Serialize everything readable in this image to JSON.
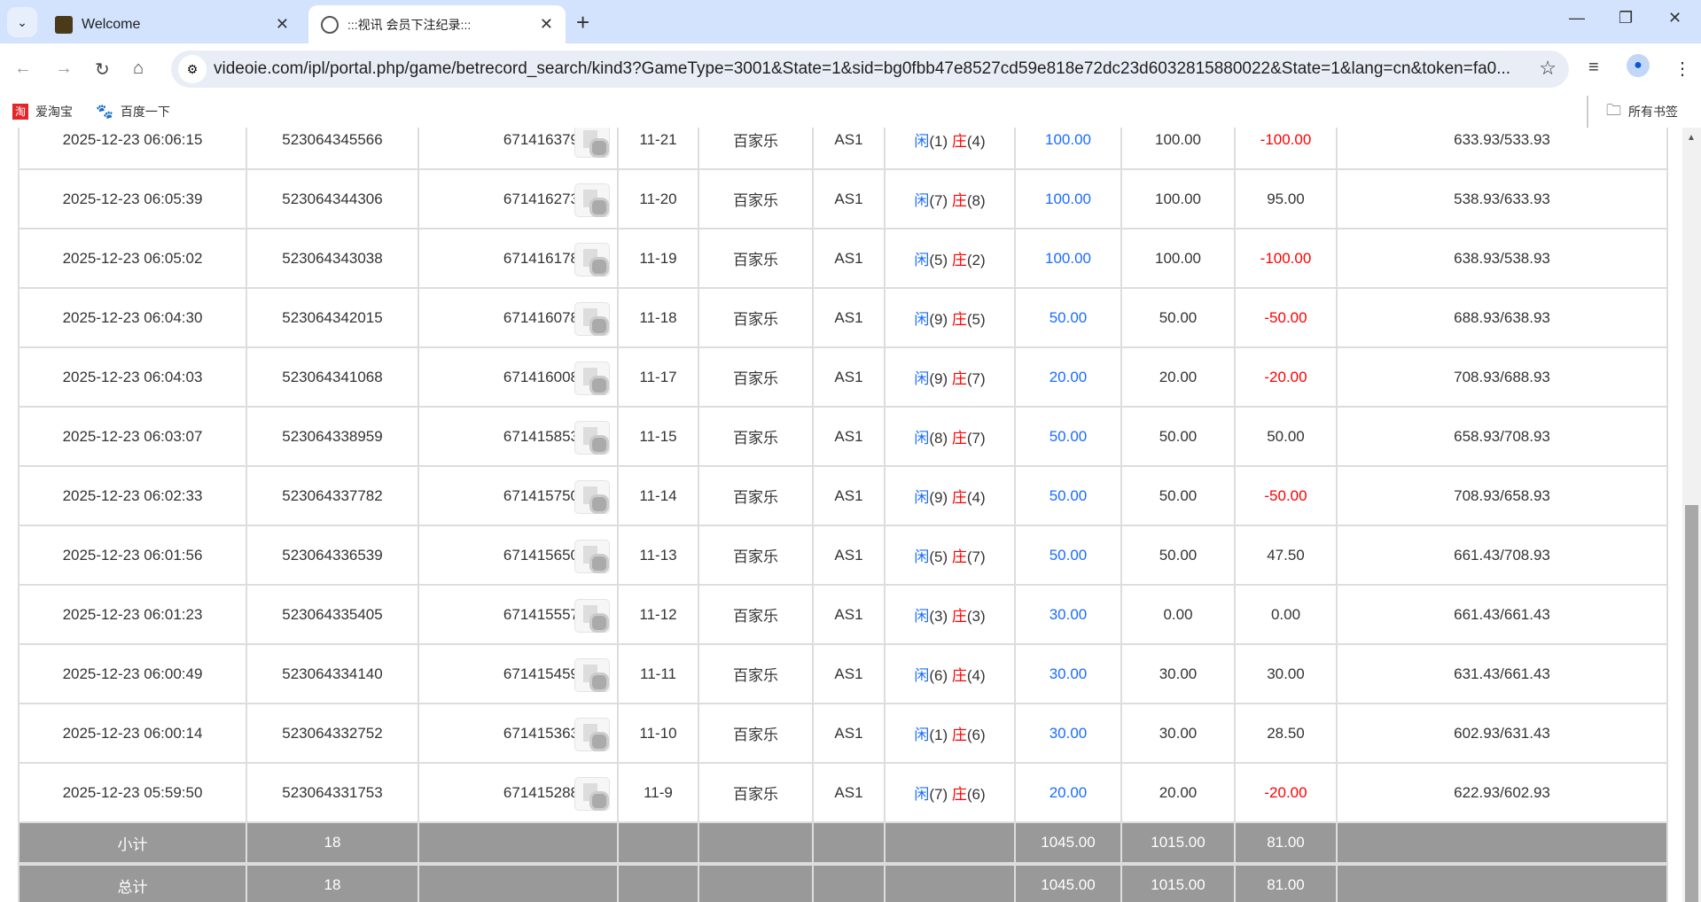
{
  "browser": {
    "tabs": [
      {
        "title": "Welcome",
        "active": false
      },
      {
        "title": ":::视讯 会员下注纪录:::",
        "active": true
      }
    ],
    "url": "videoie.com/ipl/portal.php/game/betrecord_search/kind3?GameType=3001&State=1&sid=bg0fbb47e8527cd59e818e72dc23d6032815880022&State=1&lang=cn&token=fa0...",
    "bookmarks": [
      {
        "label": "爱淘宝"
      },
      {
        "label": "百度一下"
      }
    ],
    "all_bookmarks": "所有书签"
  },
  "colors": {
    "player": "#1a6cff",
    "banker": "#ff0000",
    "loss": "#ff0000",
    "footer_bg": "#999999"
  },
  "rows": [
    {
      "time": "2025-12-23 06:06:15",
      "bet_id": "523064345566",
      "round": "671416379",
      "table_no": "11-21",
      "game": "百家乐",
      "table": "AS1",
      "p": "闲",
      "pv": "(1)",
      "b": "庄",
      "bv": "(4)",
      "bet": "100.00",
      "valid": "100.00",
      "win": "-100.00",
      "loss": true,
      "balance": "633.93/533.93"
    },
    {
      "time": "2025-12-23 06:05:39",
      "bet_id": "523064344306",
      "round": "671416273",
      "table_no": "11-20",
      "game": "百家乐",
      "table": "AS1",
      "p": "闲",
      "pv": "(7)",
      "b": "庄",
      "bv": "(8)",
      "bet": "100.00",
      "valid": "100.00",
      "win": "95.00",
      "loss": false,
      "balance": "538.93/633.93"
    },
    {
      "time": "2025-12-23 06:05:02",
      "bet_id": "523064343038",
      "round": "671416178",
      "table_no": "11-19",
      "game": "百家乐",
      "table": "AS1",
      "p": "闲",
      "pv": "(5)",
      "b": "庄",
      "bv": "(2)",
      "bet": "100.00",
      "valid": "100.00",
      "win": "-100.00",
      "loss": true,
      "balance": "638.93/538.93"
    },
    {
      "time": "2025-12-23 06:04:30",
      "bet_id": "523064342015",
      "round": "671416078",
      "table_no": "11-18",
      "game": "百家乐",
      "table": "AS1",
      "p": "闲",
      "pv": "(9)",
      "b": "庄",
      "bv": "(5)",
      "bet": "50.00",
      "valid": "50.00",
      "win": "-50.00",
      "loss": true,
      "balance": "688.93/638.93"
    },
    {
      "time": "2025-12-23 06:04:03",
      "bet_id": "523064341068",
      "round": "671416008",
      "table_no": "11-17",
      "game": "百家乐",
      "table": "AS1",
      "p": "闲",
      "pv": "(9)",
      "b": "庄",
      "bv": "(7)",
      "bet": "20.00",
      "valid": "20.00",
      "win": "-20.00",
      "loss": true,
      "balance": "708.93/688.93"
    },
    {
      "time": "2025-12-23 06:03:07",
      "bet_id": "523064338959",
      "round": "671415853",
      "table_no": "11-15",
      "game": "百家乐",
      "table": "AS1",
      "p": "闲",
      "pv": "(8)",
      "b": "庄",
      "bv": "(7)",
      "bet": "50.00",
      "valid": "50.00",
      "win": "50.00",
      "loss": false,
      "balance": "658.93/708.93"
    },
    {
      "time": "2025-12-23 06:02:33",
      "bet_id": "523064337782",
      "round": "671415750",
      "table_no": "11-14",
      "game": "百家乐",
      "table": "AS1",
      "p": "闲",
      "pv": "(9)",
      "b": "庄",
      "bv": "(4)",
      "bet": "50.00",
      "valid": "50.00",
      "win": "-50.00",
      "loss": true,
      "balance": "708.93/658.93"
    },
    {
      "time": "2025-12-23 06:01:56",
      "bet_id": "523064336539",
      "round": "671415650",
      "table_no": "11-13",
      "game": "百家乐",
      "table": "AS1",
      "p": "闲",
      "pv": "(5)",
      "b": "庄",
      "bv": "(7)",
      "bet": "50.00",
      "valid": "50.00",
      "win": "47.50",
      "loss": false,
      "balance": "661.43/708.93"
    },
    {
      "time": "2025-12-23 06:01:23",
      "bet_id": "523064335405",
      "round": "671415557",
      "table_no": "11-12",
      "game": "百家乐",
      "table": "AS1",
      "p": "闲",
      "pv": "(3)",
      "b": "庄",
      "bv": "(3)",
      "bet": "30.00",
      "valid": "0.00",
      "win": "0.00",
      "loss": false,
      "balance": "661.43/661.43"
    },
    {
      "time": "2025-12-23 06:00:49",
      "bet_id": "523064334140",
      "round": "671415459",
      "table_no": "11-11",
      "game": "百家乐",
      "table": "AS1",
      "p": "闲",
      "pv": "(6)",
      "b": "庄",
      "bv": "(4)",
      "bet": "30.00",
      "valid": "30.00",
      "win": "30.00",
      "loss": false,
      "balance": "631.43/661.43"
    },
    {
      "time": "2025-12-23 06:00:14",
      "bet_id": "523064332752",
      "round": "671415363",
      "table_no": "11-10",
      "game": "百家乐",
      "table": "AS1",
      "p": "闲",
      "pv": "(1)",
      "b": "庄",
      "bv": "(6)",
      "bet": "30.00",
      "valid": "30.00",
      "win": "28.50",
      "loss": false,
      "balance": "602.93/631.43"
    },
    {
      "time": "2025-12-23 05:59:50",
      "bet_id": "523064331753",
      "round": "671415288",
      "table_no": "11-9",
      "game": "百家乐",
      "table": "AS1",
      "p": "闲",
      "pv": "(7)",
      "b": "庄",
      "bv": "(6)",
      "bet": "20.00",
      "valid": "20.00",
      "win": "-20.00",
      "loss": true,
      "balance": "622.93/602.93"
    }
  ],
  "subtotal": {
    "label": "小计",
    "count": "18",
    "bet": "1045.00",
    "valid": "1015.00",
    "win": "81.00"
  },
  "total": {
    "label": "总计",
    "count": "18",
    "bet": "1045.00",
    "valid": "1015.00",
    "win": "81.00"
  }
}
